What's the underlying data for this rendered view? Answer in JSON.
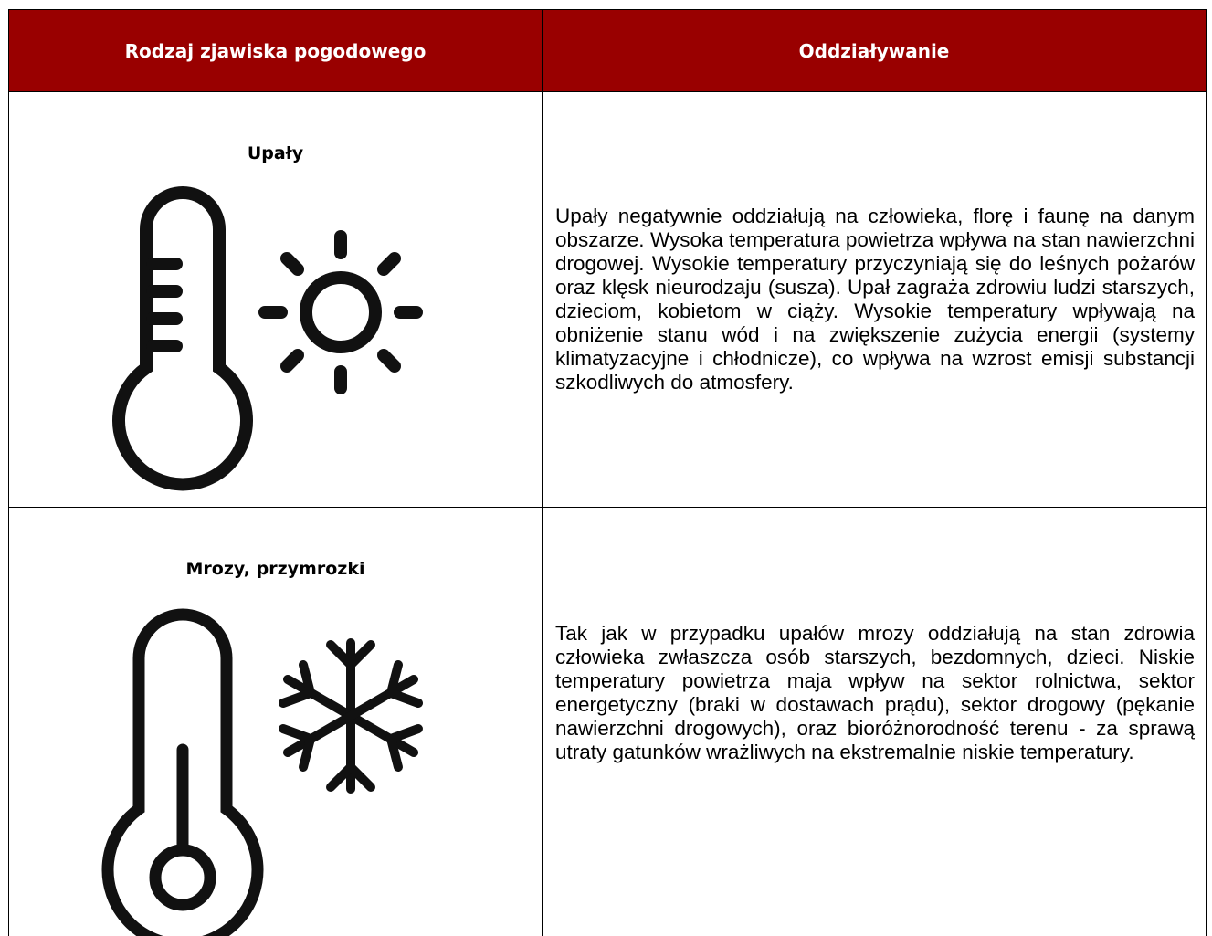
{
  "table": {
    "header": [
      "Rodzaj zjawiska pogodowego",
      "Oddziaływanie"
    ],
    "rows": [
      [
        "Upały",
        "Upały negatywnie oddziałują na człowieka, florę i faunę na danym obszarze. Wysoka temperatura powietrza wpływa na stan nawierzchni drogowej. Wysokie temperatury przyczyniają się do leśnych pożarów oraz klęsk nieurodzaju (susza). Upał zagraża zdrowiu ludzi starszych, dzieciom, kobietom w ciąży. Wysokie temperatury wpływają na obniżenie stanu wód i na zwiększenie zużycia energii (systemy klimatyzacyjne i chłodnicze), co wpływa na wzrost emisji substancji szkodliwych do atmosfery."
      ],
      [
        "Mrozy, przymrozki",
        "Tak jak w przypadku upałów mrozy oddziałują na stan zdrowia człowieka zwłaszcza osób starszych, bezdomnych, dzieci. Niskie temperatury powietrza maja wpływ na sektor rolnictwa, sektor energetyczny (braki w dostawach prądu), sektor drogowy (pękanie nawierzchni drogowych), oraz bioróżnorodność terenu -  za sprawą utraty gatunków wrażliwych na ekstremalnie niskie temperatury."
      ]
    ]
  }
}
